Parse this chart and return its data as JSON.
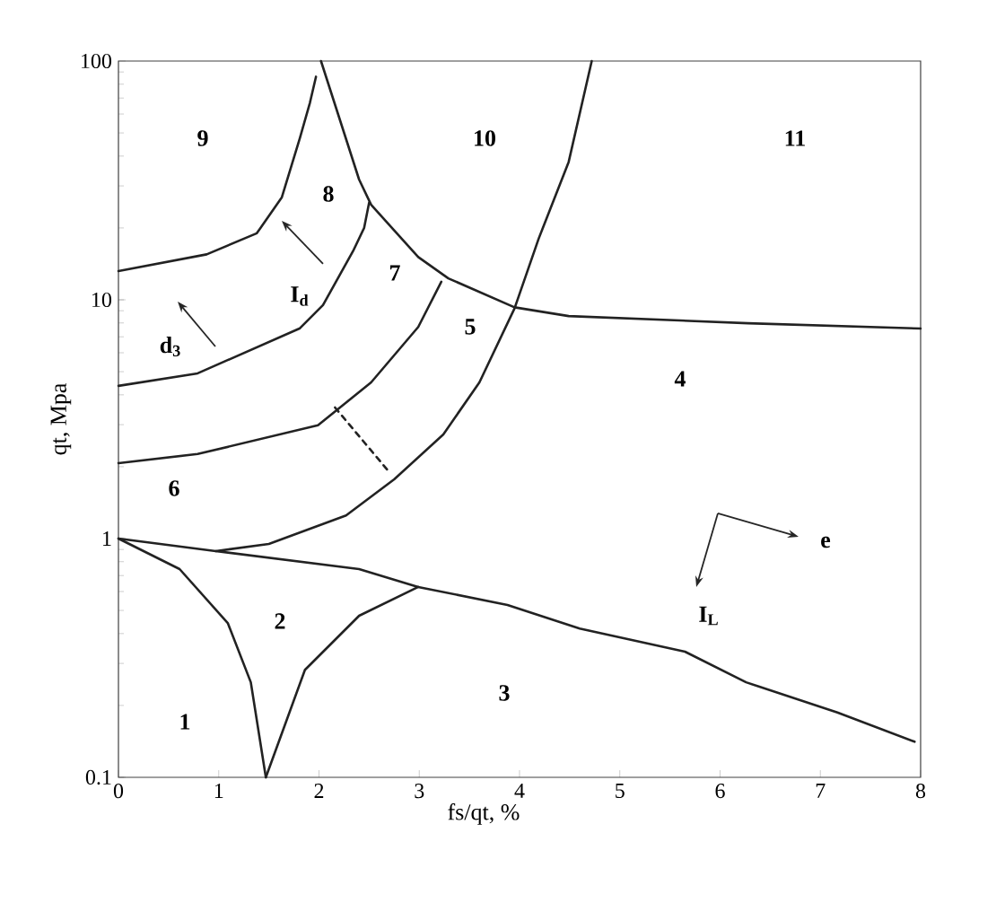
{
  "chart_data": {
    "type": "line",
    "xlabel": "fs/qt, %",
    "ylabel": "qt, Mpa",
    "xlim": [
      0,
      8
    ],
    "xticks": [
      0,
      1,
      2,
      3,
      4,
      5,
      6,
      7,
      8
    ],
    "ylim": [
      0.1,
      100
    ],
    "yticks": [
      0.1,
      1,
      10,
      100
    ],
    "log": "y",
    "marker": "none",
    "line_style": "solid",
    "series": [
      {
        "color": "#222222",
        "x": [
          0,
          0.88,
          1.38,
          1.63,
          1.81,
          1.91,
          1.97
        ],
        "values": [
          13.2,
          15.5,
          19.0,
          26.9,
          47.7,
          67,
          86
        ]
      },
      {
        "color": "#222222",
        "x": [
          0,
          0.79,
          1.81,
          2.04,
          2.34,
          2.45,
          2.5
        ],
        "values": [
          4.36,
          4.92,
          7.6,
          9.5,
          16,
          20,
          25.5
        ]
      },
      {
        "color": "#222222",
        "x": [
          2.02,
          2.4,
          2.52,
          2.99,
          3.29,
          3.95,
          4.49,
          6.28,
          8.0
        ],
        "values": [
          100,
          31.9,
          25,
          15.1,
          12.3,
          9.3,
          8.55,
          7.98,
          7.58
        ]
      },
      {
        "color": "#222222",
        "x": [
          0,
          0.79,
          1.99,
          2.52,
          2.99,
          3.22
        ],
        "values": [
          2.07,
          2.26,
          2.98,
          4.51,
          7.7,
          11.9
        ]
      },
      {
        "color": "#222222",
        "x": [
          0.97,
          1.5,
          2.27,
          2.75,
          3.24,
          3.6,
          3.95,
          4.19,
          4.49,
          4.72
        ],
        "values": [
          0.886,
          0.95,
          1.25,
          1.77,
          2.73,
          4.51,
          9.2,
          18,
          37.8,
          100
        ]
      },
      {
        "color": "#222222",
        "x": [
          0,
          0.97,
          2.4,
          2.99,
          3.88,
          4.6,
          5.65,
          6.26,
          7.17,
          7.94
        ],
        "values": [
          1,
          0.886,
          0.745,
          0.627,
          0.527,
          0.42,
          0.336,
          0.25,
          0.187,
          0.141
        ]
      },
      {
        "color": "#222222",
        "x": [
          0,
          0.61,
          1.09,
          1.32,
          1.47
        ],
        "values": [
          1,
          0.745,
          0.443,
          0.25,
          0.1
        ]
      },
      {
        "color": "#222222",
        "x": [
          1.47,
          1.86,
          2.4,
          2.99
        ],
        "values": [
          0.1,
          0.282,
          0.475,
          0.627
        ]
      },
      {
        "color": "#222222",
        "line_style": "dashed",
        "x": [
          2.16,
          2.7
        ],
        "values": [
          3.54,
          1.9
        ]
      }
    ],
    "annotations": [
      "1",
      "2",
      "3",
      "4",
      "5",
      "6",
      "7",
      "8",
      "9",
      "10",
      "11",
      "d$_{3}$",
      "I$_{d}$",
      "I$_{L}$",
      "e"
    ]
  }
}
